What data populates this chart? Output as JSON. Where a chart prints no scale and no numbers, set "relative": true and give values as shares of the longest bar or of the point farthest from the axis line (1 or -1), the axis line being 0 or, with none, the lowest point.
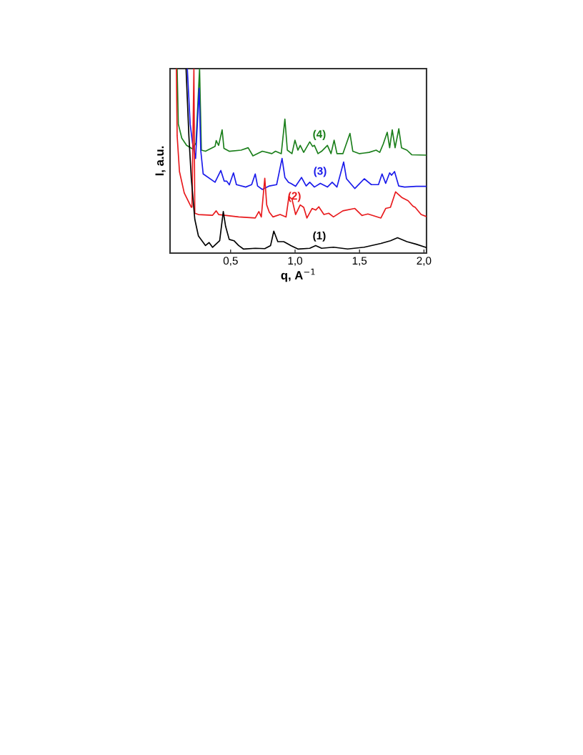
{
  "chart_data": {
    "type": "line",
    "xlabel": "q, A$^{−1}$",
    "ylabel": "I, a.u.",
    "relative": true,
    "xlim": [
      0.03,
      2.02
    ],
    "xticks": [
      {
        "value": 0.5,
        "label": "0,5"
      },
      {
        "value": 1.0,
        "label": "1,0"
      },
      {
        "value": 1.5,
        "label": "1,5"
      },
      {
        "value": 2.0,
        "label": "2,0"
      }
    ],
    "grid": false,
    "legend": false,
    "marker": "none",
    "line_style": "solid",
    "series": [
      {
        "name": "(1)",
        "color": "#000000",
        "x": [
          0.154,
          0.176,
          0.195,
          0.222,
          0.25,
          0.305,
          0.333,
          0.36,
          0.415,
          0.443,
          0.461,
          0.489,
          0.526,
          0.562,
          0.599,
          0.691,
          0.765,
          0.81,
          0.835,
          0.866,
          0.912,
          0.948,
          0.967,
          1.022,
          1.114,
          1.16,
          1.206,
          1.298,
          1.408,
          1.537,
          1.666,
          1.74,
          1.795,
          1.868,
          1.941,
          2.015
        ],
        "values": [
          1.0,
          0.636,
          0.403,
          0.183,
          0.093,
          0.041,
          0.057,
          0.031,
          0.067,
          0.225,
          0.145,
          0.074,
          0.067,
          0.041,
          0.022,
          0.026,
          0.024,
          0.041,
          0.119,
          0.062,
          0.062,
          0.048,
          0.041,
          0.022,
          0.026,
          0.041,
          0.026,
          0.032,
          0.022,
          0.032,
          0.052,
          0.067,
          0.083,
          0.062,
          0.048,
          0.031
        ]
      },
      {
        "name": "(2)",
        "color": "#e8191c",
        "x": [
          0.079,
          0.085,
          0.103,
          0.14,
          0.195,
          0.2,
          0.215,
          0.222,
          0.25,
          0.36,
          0.388,
          0.407,
          0.562,
          0.691,
          0.719,
          0.738,
          0.765,
          0.78,
          0.8,
          0.829,
          0.884,
          0.93,
          0.952,
          0.976,
          1.004,
          1.04,
          1.067,
          1.092,
          1.132,
          1.16,
          1.184,
          1.224,
          1.261,
          1.298,
          1.371,
          1.464,
          1.519,
          1.565,
          1.666,
          1.703,
          1.74,
          1.78,
          1.831,
          1.877,
          1.914,
          1.932,
          1.978,
          2.015
        ],
        "values": [
          1.0,
          0.636,
          0.442,
          0.326,
          0.248,
          0.25,
          1.0,
          0.216,
          0.209,
          0.205,
          0.229,
          0.209,
          0.196,
          0.19,
          0.225,
          0.196,
          0.406,
          0.261,
          0.222,
          0.196,
          0.209,
          0.196,
          0.306,
          0.293,
          0.209,
          0.261,
          0.248,
          0.19,
          0.242,
          0.233,
          0.251,
          0.209,
          0.216,
          0.196,
          0.229,
          0.242,
          0.204,
          0.212,
          0.19,
          0.242,
          0.248,
          0.332,
          0.3,
          0.284,
          0.255,
          0.248,
          0.209,
          0.199
        ]
      },
      {
        "name": "(3)",
        "color": "#1a1aeb",
        "x": [
          0.164,
          0.186,
          0.204,
          0.228,
          0.256,
          0.268,
          0.287,
          0.379,
          0.424,
          0.45,
          0.47,
          0.49,
          0.522,
          0.545,
          0.617,
          0.663,
          0.691,
          0.709,
          0.746,
          0.801,
          0.857,
          0.899,
          0.921,
          0.949,
          0.967,
          1.004,
          1.05,
          1.086,
          1.114,
          1.15,
          1.196,
          1.251,
          1.288,
          1.325,
          1.377,
          1.399,
          1.464,
          1.537,
          1.592,
          1.647,
          1.675,
          1.703,
          1.734,
          1.748,
          1.772,
          1.804,
          1.85,
          1.941,
          2.015
        ],
        "values": [
          1.0,
          0.7,
          0.597,
          0.513,
          0.894,
          0.558,
          0.429,
          0.384,
          0.448,
          0.39,
          0.39,
          0.37,
          0.435,
          0.371,
          0.358,
          0.371,
          0.429,
          0.364,
          0.345,
          0.364,
          0.371,
          0.513,
          0.41,
          0.384,
          0.378,
          0.362,
          0.41,
          0.364,
          0.384,
          0.358,
          0.378,
          0.358,
          0.384,
          0.358,
          0.494,
          0.403,
          0.35,
          0.403,
          0.371,
          0.371,
          0.429,
          0.378,
          0.435,
          0.422,
          0.442,
          0.364,
          0.358,
          0.362,
          0.362
        ]
      },
      {
        "name": "(4)",
        "color": "#1b7f1b",
        "x": [
          0.085,
          0.094,
          0.121,
          0.158,
          0.204,
          0.231,
          0.259,
          0.273,
          0.305,
          0.379,
          0.388,
          0.407,
          0.434,
          0.448,
          0.489,
          0.581,
          0.636,
          0.673,
          0.746,
          0.82,
          0.848,
          0.893,
          0.921,
          0.94,
          0.976,
          0.999,
          1.022,
          1.04,
          1.067,
          1.114,
          1.136,
          1.15,
          1.178,
          1.206,
          1.251,
          1.279,
          1.303,
          1.325,
          1.371,
          1.426,
          1.448,
          1.5,
          1.574,
          1.629,
          1.657,
          1.684,
          1.715,
          1.734,
          1.754,
          1.776,
          1.805,
          1.826,
          1.868,
          1.905,
          2.015
        ],
        "values": [
          1.0,
          0.7,
          0.623,
          0.584,
          0.565,
          0.597,
          1.0,
          0.558,
          0.552,
          0.578,
          0.61,
          0.584,
          0.668,
          0.568,
          0.552,
          0.558,
          0.571,
          0.527,
          0.552,
          0.539,
          0.552,
          0.539,
          0.726,
          0.558,
          0.539,
          0.612,
          0.558,
          0.584,
          0.546,
          0.603,
          0.578,
          0.584,
          0.539,
          0.552,
          0.584,
          0.539,
          0.612,
          0.539,
          0.539,
          0.649,
          0.552,
          0.539,
          0.546,
          0.558,
          0.546,
          0.591,
          0.655,
          0.571,
          0.668,
          0.571,
          0.674,
          0.571,
          0.558,
          0.533,
          0.531
        ]
      }
    ]
  }
}
